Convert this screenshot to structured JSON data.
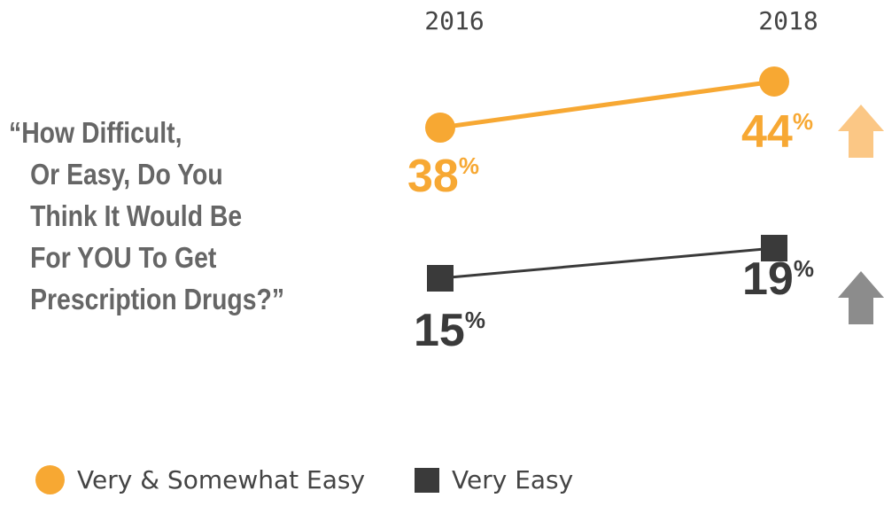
{
  "question": {
    "lines": [
      "“How Difficult,",
      "Or Easy, Do You",
      "Think It Would Be",
      "For YOU To Get",
      "Prescription Drugs?”"
    ]
  },
  "colors": {
    "orange": "#F7A833",
    "orange_light": "#FBC785",
    "dark": "#3A3A3A",
    "gray_arrow": "#8C8C8C"
  },
  "chart_data": {
    "type": "line",
    "x": [
      "2016",
      "2018"
    ],
    "series": [
      {
        "name": "Very & Somewhat Easy",
        "values": [
          38,
          44
        ],
        "labels": [
          "38",
          "44"
        ],
        "marker": "circle",
        "trend": "up"
      },
      {
        "name": "Very Easy",
        "values": [
          15,
          19
        ],
        "labels": [
          "15",
          "19"
        ],
        "marker": "square",
        "trend": "up"
      }
    ],
    "unit": "%",
    "legend": "bottom-left"
  }
}
